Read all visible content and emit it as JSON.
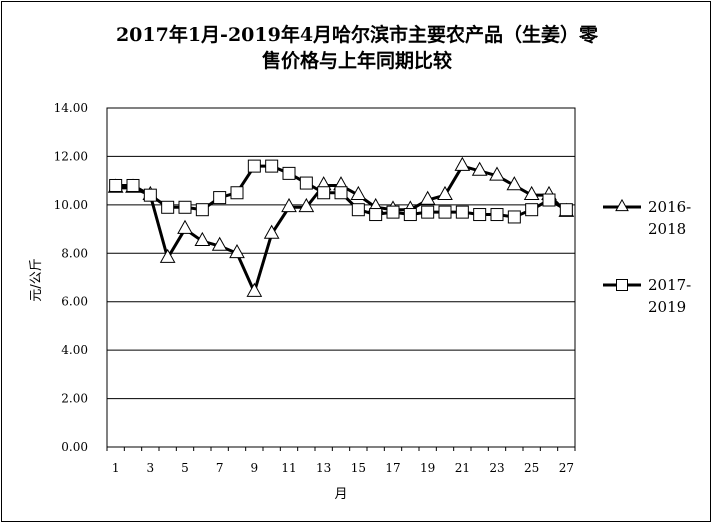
{
  "chart_data": {
    "type": "line",
    "title_line1": "2017年1月-2019年4月哈尔滨市主要农产品（生姜）零",
    "title_line2": "售价格与上年同期比较",
    "xlabel": "月",
    "ylabel": "元/公斤",
    "ylim": [
      0,
      14
    ],
    "yticks": [
      "0.00",
      "2.00",
      "4.00",
      "6.00",
      "8.00",
      "10.00",
      "12.00",
      "14.00"
    ],
    "yticks_values": [
      0,
      2,
      4,
      6,
      8,
      10,
      12,
      14
    ],
    "xlim": [
      1,
      27
    ],
    "xticks": [
      1,
      3,
      5,
      7,
      9,
      11,
      13,
      15,
      17,
      19,
      21,
      23,
      25,
      27
    ],
    "grid": "horizontal",
    "legend_position": "right",
    "series": [
      {
        "name_line1": "2016-",
        "name_line2": "2018",
        "marker": "triangle",
        "color": "#000000",
        "x": [
          1,
          2,
          3,
          4,
          5,
          6,
          7,
          8,
          9,
          10,
          11,
          12,
          13,
          14,
          15,
          16,
          17,
          18,
          19,
          20,
          21,
          22,
          23,
          24,
          25,
          26,
          27
        ],
        "values": [
          10.7,
          10.7,
          10.4,
          7.8,
          9.0,
          8.5,
          8.3,
          8.0,
          6.4,
          8.8,
          9.9,
          9.9,
          10.8,
          10.8,
          10.4,
          9.9,
          9.8,
          9.8,
          10.2,
          10.4,
          11.6,
          11.4,
          11.2,
          10.8,
          10.4,
          10.4,
          9.7
        ]
      },
      {
        "name_line1": "2017-",
        "name_line2": "2019",
        "marker": "square",
        "color": "#000000",
        "x": [
          1,
          2,
          3,
          4,
          5,
          6,
          7,
          8,
          9,
          10,
          11,
          12,
          13,
          14,
          15,
          16,
          17,
          18,
          19,
          20,
          21,
          22,
          23,
          24,
          25,
          26,
          27
        ],
        "values": [
          10.8,
          10.8,
          10.4,
          9.9,
          9.9,
          9.8,
          10.3,
          10.5,
          11.6,
          11.6,
          11.3,
          10.9,
          10.5,
          10.5,
          9.8,
          9.6,
          9.7,
          9.6,
          9.7,
          9.7,
          9.7,
          9.6,
          9.6,
          9.5,
          9.8,
          10.2,
          9.8
        ]
      }
    ]
  }
}
